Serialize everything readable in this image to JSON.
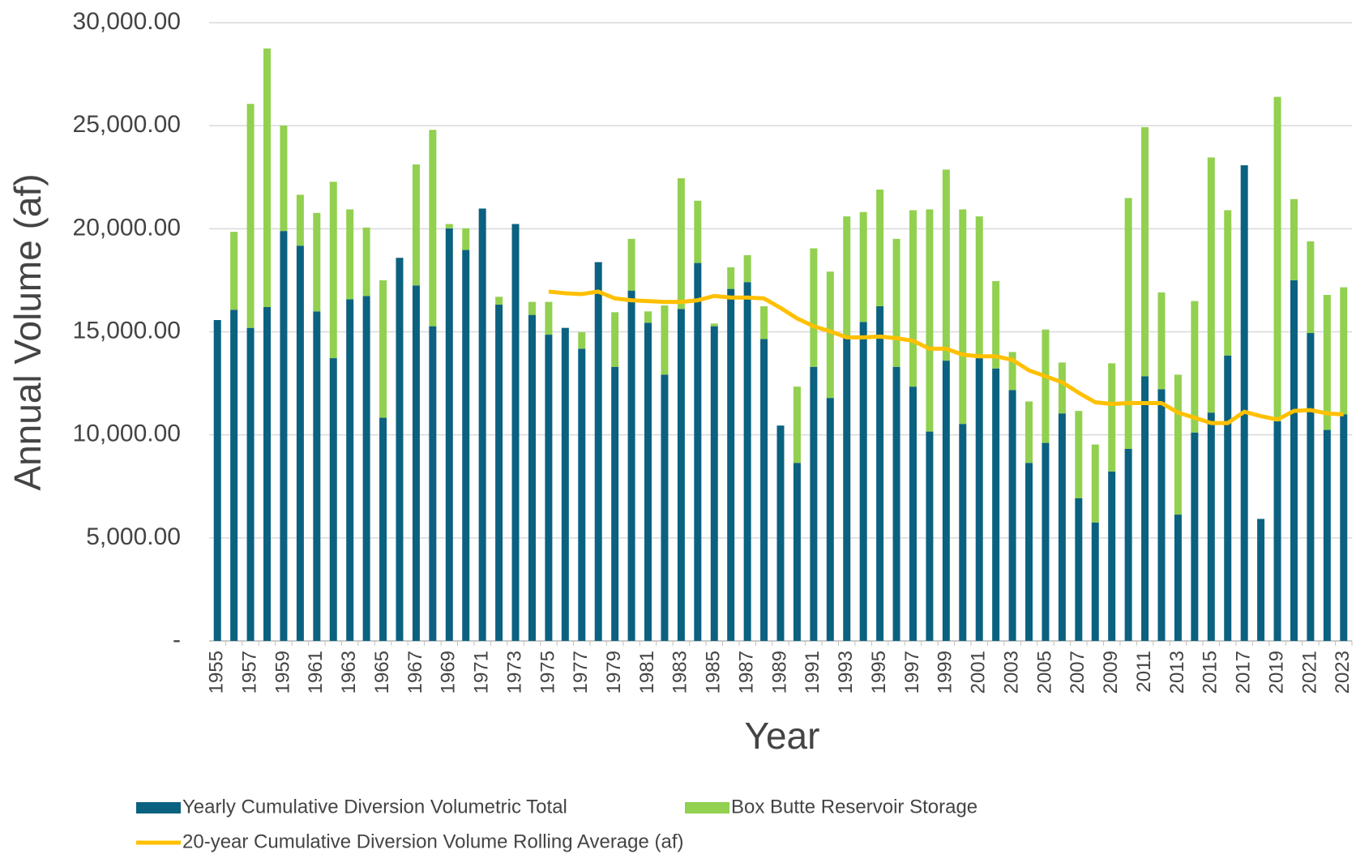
{
  "chart_data": {
    "type": "bar",
    "stacked": true,
    "x_label": "Year",
    "y_label": "Annual Volume (af)",
    "categories": [
      "1955",
      null,
      "1957",
      null,
      "1959",
      null,
      "1961",
      null,
      "1963",
      null,
      "1965",
      null,
      "1967",
      null,
      "1969",
      null,
      "1971",
      null,
      "1973",
      null,
      "1975",
      null,
      "1977",
      null,
      "1979",
      null,
      "1981",
      null,
      "1983",
      null,
      "1985",
      null,
      "1987",
      null,
      "1989",
      null,
      "1991",
      null,
      "1993",
      null,
      "1995",
      null,
      "1997",
      null,
      "1999",
      null,
      "2001",
      null,
      "2003",
      null,
      "2005",
      null,
      "2007",
      null,
      "2009",
      null,
      "2011",
      null,
      "2013",
      null,
      "2015",
      null,
      "2017",
      null,
      "2019",
      null,
      "2021",
      null,
      "2023"
    ],
    "series": [
      {
        "name": "Yearly Cumulative Diversion Volumetric Total",
        "color": "#0b6180",
        "type": "bar",
        "values": [
          15570,
          16070,
          15190,
          16200,
          19890,
          19180,
          15990,
          13720,
          16580,
          16740,
          10830,
          18590,
          17250,
          15270,
          20020,
          18970,
          20980,
          16320,
          20230,
          15820,
          14860,
          15190,
          14180,
          18380,
          13300,
          17000,
          15440,
          12920,
          16110,
          18340,
          15270,
          17080,
          17410,
          14650,
          10450,
          8640,
          13300,
          11790,
          14730,
          15480,
          16240,
          13300,
          12340,
          10160,
          13600,
          10530,
          13720,
          13220,
          12170,
          8640,
          9610,
          11040,
          6920,
          5750,
          8220,
          9320,
          12840,
          12210,
          6130,
          10110,
          11080,
          13850,
          23080,
          5920,
          10660,
          17500,
          14940,
          10240,
          10990
        ]
      },
      {
        "name": "Box Butte Reservoir Storage",
        "color": "#92d050",
        "type": "bar",
        "values": [
          0,
          3780,
          10870,
          12550,
          5120,
          2470,
          4780,
          8560,
          4360,
          3320,
          6670,
          0,
          5870,
          9530,
          210,
          1050,
          0,
          380,
          0,
          630,
          1590,
          0,
          800,
          0,
          2650,
          2510,
          550,
          3360,
          6340,
          3020,
          130,
          1050,
          1310,
          1590,
          0,
          3700,
          5750,
          6130,
          5870,
          5330,
          5660,
          6210,
          8560,
          10780,
          9270,
          10410,
          6880,
          4240,
          1850,
          2980,
          5500,
          2470,
          4240,
          3780,
          5250,
          12170,
          12090,
          4700,
          6790,
          6380,
          12380,
          7050,
          0,
          0,
          15740,
          3940,
          4450,
          6550,
          6170
        ]
      },
      {
        "name": "20-year Cumulative Diversion Volume Rolling Average (af)",
        "color": "#ffc000",
        "type": "line",
        "values": [
          null,
          null,
          null,
          null,
          null,
          null,
          null,
          null,
          null,
          null,
          null,
          null,
          null,
          null,
          null,
          null,
          null,
          null,
          null,
          null,
          16950,
          16870,
          16830,
          16950,
          16620,
          16530,
          16490,
          16450,
          16450,
          16530,
          16740,
          16660,
          16660,
          16620,
          16160,
          15650,
          15270,
          15020,
          14730,
          14730,
          14770,
          14690,
          14560,
          14180,
          14180,
          13890,
          13810,
          13810,
          13640,
          13130,
          12840,
          12550,
          12040,
          11580,
          11500,
          11540,
          11540,
          11540,
          11080,
          10830,
          10570,
          10570,
          11120,
          10910,
          10740,
          11160,
          11200,
          11040,
          10990
        ]
      }
    ],
    "ylim": [
      0,
      30000
    ],
    "yticks": [
      {
        "value": 0,
        "label": "-"
      },
      {
        "value": 5000,
        "label": "5,000.00"
      },
      {
        "value": 10000,
        "label": "10,000.00"
      },
      {
        "value": 15000,
        "label": "15,000.00"
      },
      {
        "value": 20000,
        "label": "20,000.00"
      },
      {
        "value": 25000,
        "label": "25,000.00"
      },
      {
        "value": 30000,
        "label": "30,000.00"
      }
    ],
    "grid": true,
    "legend": "bottom"
  }
}
